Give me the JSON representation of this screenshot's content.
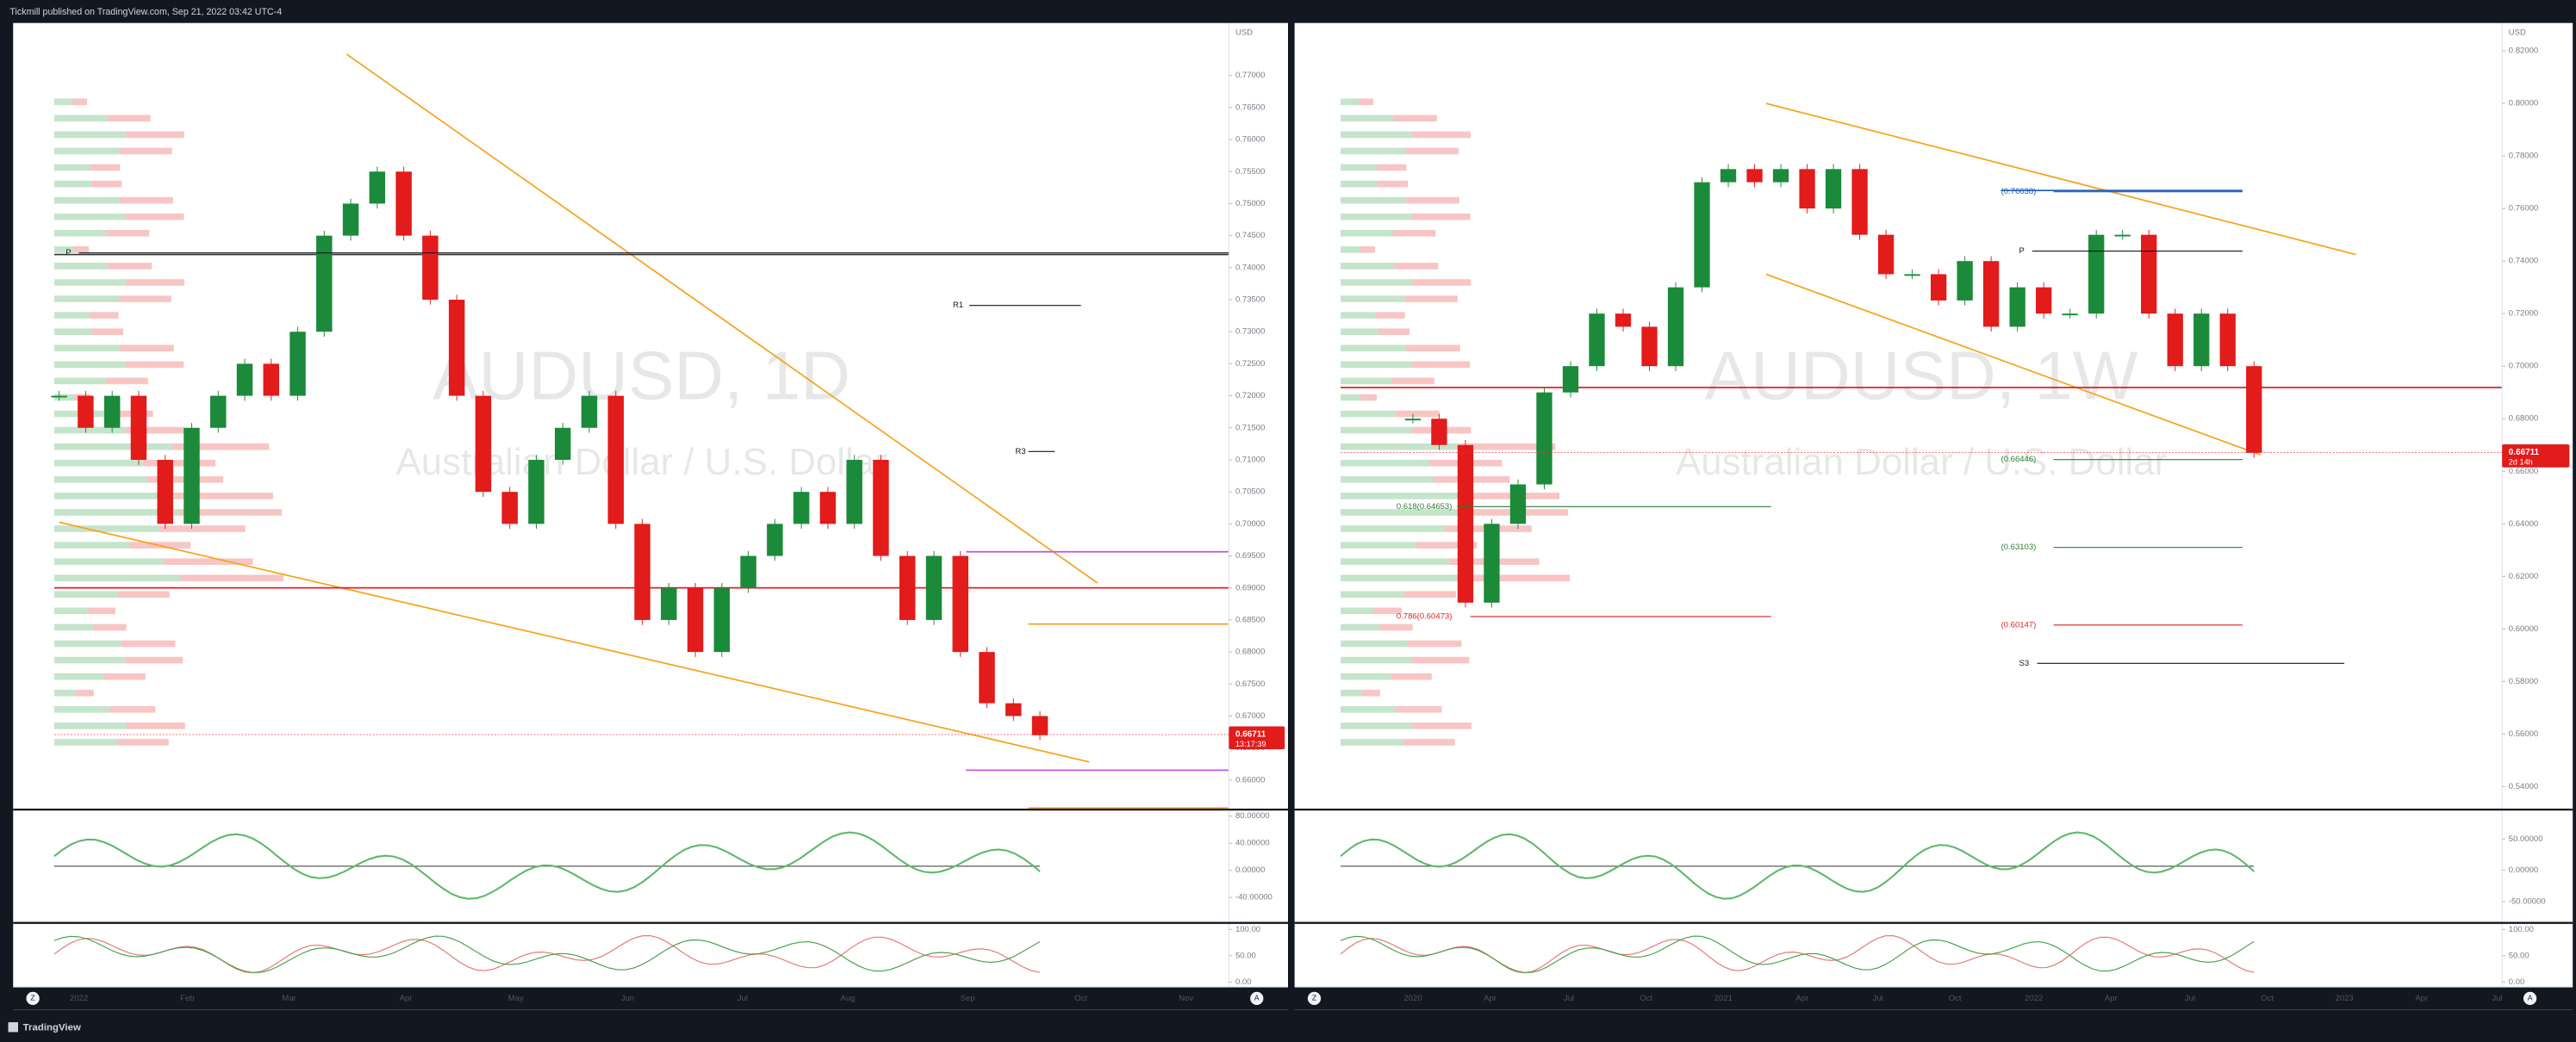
{
  "header": {
    "title": "Tickmill published on TradingView.com, Sep 21, 2022 03:42 UTC-4"
  },
  "footer": {
    "brand": "TradingView"
  },
  "panels": [
    {
      "symbol_title": "AUDUSD, 1D",
      "description": "Australian Dollar / U.S. Dollar",
      "currency": "USD",
      "price_range": [
        0.6554,
        0.7782
      ],
      "price_ticks": [
        {
          "value": 0.77,
          "label": "0.77000"
        },
        {
          "value": 0.765,
          "label": "0.76500"
        },
        {
          "value": 0.76,
          "label": "0.76000"
        },
        {
          "value": 0.755,
          "label": "0.75500"
        },
        {
          "value": 0.75,
          "label": "0.75000"
        },
        {
          "value": 0.745,
          "label": "0.74500"
        },
        {
          "value": 0.74,
          "label": "0.74000"
        },
        {
          "value": 0.735,
          "label": "0.73500"
        },
        {
          "value": 0.73,
          "label": "0.73000"
        },
        {
          "value": 0.725,
          "label": "0.72500"
        },
        {
          "value": 0.72,
          "label": "0.72000"
        },
        {
          "value": 0.715,
          "label": "0.71500"
        },
        {
          "value": 0.71,
          "label": "0.71000"
        },
        {
          "value": 0.705,
          "label": "0.70500"
        },
        {
          "value": 0.7,
          "label": "0.70000"
        },
        {
          "value": 0.695,
          "label": "0.69500"
        },
        {
          "value": 0.69,
          "label": "0.69000"
        },
        {
          "value": 0.685,
          "label": "0.68500"
        },
        {
          "value": 0.68,
          "label": "0.68000"
        },
        {
          "value": 0.675,
          "label": "0.67500"
        },
        {
          "value": 0.67,
          "label": "0.67000"
        },
        {
          "value": 0.665,
          "label": "0.66500"
        },
        {
          "value": 0.66,
          "label": "0.66000"
        }
      ],
      "time_labels": [
        "2022",
        "Feb",
        "Mar",
        "Apr",
        "May",
        "Jun",
        "Jul",
        "Aug",
        "Sep",
        "Oct",
        "Nov"
      ],
      "closes": [
        0.72,
        0.715,
        0.72,
        0.71,
        0.7,
        0.715,
        0.72,
        0.725,
        0.72,
        0.73,
        0.745,
        0.75,
        0.755,
        0.745,
        0.735,
        0.72,
        0.705,
        0.7,
        0.71,
        0.715,
        0.72,
        0.7,
        0.685,
        0.69,
        0.68,
        0.69,
        0.695,
        0.7,
        0.705,
        0.7,
        0.71,
        0.695,
        0.685,
        0.695,
        0.68,
        0.672,
        0.67,
        0.667
      ],
      "annotations": [
        {
          "label": "P",
          "price": 0.7423
        },
        {
          "label": "R1",
          "price": 0.7341
        },
        {
          "label": "R3",
          "price": 0.7113
        }
      ],
      "last_price": {
        "value": 0.66711,
        "label": "0.66711"
      },
      "countdown": "13:17:39",
      "osc1_range": [
        -77.6,
        89.7
      ],
      "osc1_ticks": [
        {
          "value": 80,
          "label": "80.00000"
        },
        {
          "value": 40,
          "label": "40.00000"
        },
        {
          "value": 0,
          "label": "0.00000"
        },
        {
          "value": -40,
          "label": "-40.00000"
        }
      ],
      "osc2_range": [
        -6.25,
        112.5
      ],
      "osc2_ticks": [
        {
          "value": 100,
          "label": "100.00"
        },
        {
          "value": 50,
          "label": "50.00"
        },
        {
          "value": 0,
          "label": "0.00"
        }
      ],
      "buttons": [
        "Z",
        "A"
      ]
    },
    {
      "symbol_title": "AUDUSD, 1W",
      "description": "Australian Dollar / U.S. Dollar",
      "currency": "USD",
      "price_range": [
        0.53125,
        0.8306
      ],
      "price_ticks": [
        {
          "value": 0.82,
          "label": "0.82000"
        },
        {
          "value": 0.8,
          "label": "0.80000"
        },
        {
          "value": 0.78,
          "label": "0.78000"
        },
        {
          "value": 0.76,
          "label": "0.76000"
        },
        {
          "value": 0.74,
          "label": "0.74000"
        },
        {
          "value": 0.72,
          "label": "0.72000"
        },
        {
          "value": 0.7,
          "label": "0.70000"
        },
        {
          "value": 0.68,
          "label": "0.68000"
        },
        {
          "value": 0.66,
          "label": "0.66000"
        },
        {
          "value": 0.64,
          "label": "0.64000"
        },
        {
          "value": 0.62,
          "label": "0.62000"
        },
        {
          "value": 0.6,
          "label": "0.60000"
        },
        {
          "value": 0.58,
          "label": "0.58000"
        },
        {
          "value": 0.56,
          "label": "0.56000"
        },
        {
          "value": 0.54,
          "label": "0.54000"
        }
      ],
      "time_labels": [
        "2020",
        "Apr",
        "Jul",
        "Oct",
        "2021",
        "Apr",
        "Jul",
        "Oct",
        "2022",
        "Apr",
        "Jul",
        "Oct",
        "2023",
        "Apr",
        "Jul"
      ],
      "closes": [
        0.68,
        0.67,
        0.61,
        0.64,
        0.655,
        0.69,
        0.7,
        0.72,
        0.715,
        0.7,
        0.73,
        0.77,
        0.775,
        0.77,
        0.775,
        0.76,
        0.775,
        0.75,
        0.735,
        0.735,
        0.725,
        0.74,
        0.715,
        0.73,
        0.72,
        0.72,
        0.75,
        0.75,
        0.72,
        0.7,
        0.72,
        0.7,
        0.667
      ],
      "annotations": [
        {
          "label": "(0.76638)",
          "price": 0.76638
        },
        {
          "label": "P",
          "price": 0.7438
        },
        {
          "label": "(0.66446)",
          "price": 0.66446
        },
        {
          "label": "0.618(0.64653)",
          "price": 0.64653
        },
        {
          "label": "(0.63103)",
          "price": 0.63103
        },
        {
          "label": "0.786(0.60473)",
          "price": 0.60473
        },
        {
          "label": "(0.60147)",
          "price": 0.60147
        },
        {
          "label": "S3",
          "price": 0.5869
        }
      ],
      "last_price": {
        "value": 0.66711,
        "label": "0.66711"
      },
      "countdown": "2d 14h",
      "osc1_range": [
        -84,
        97
      ],
      "osc1_ticks": [
        {
          "value": 50,
          "label": "50.00000"
        },
        {
          "value": 0,
          "label": "0.00000"
        },
        {
          "value": -50,
          "label": "-50.00000"
        }
      ],
      "osc2_range": [
        -6.25,
        112.5
      ],
      "osc2_ticks": [
        {
          "value": 100,
          "label": "100.00"
        },
        {
          "value": 50,
          "label": "50.00"
        },
        {
          "value": 0,
          "label": "0.00"
        }
      ],
      "buttons": [
        "Z",
        "A"
      ]
    }
  ]
}
